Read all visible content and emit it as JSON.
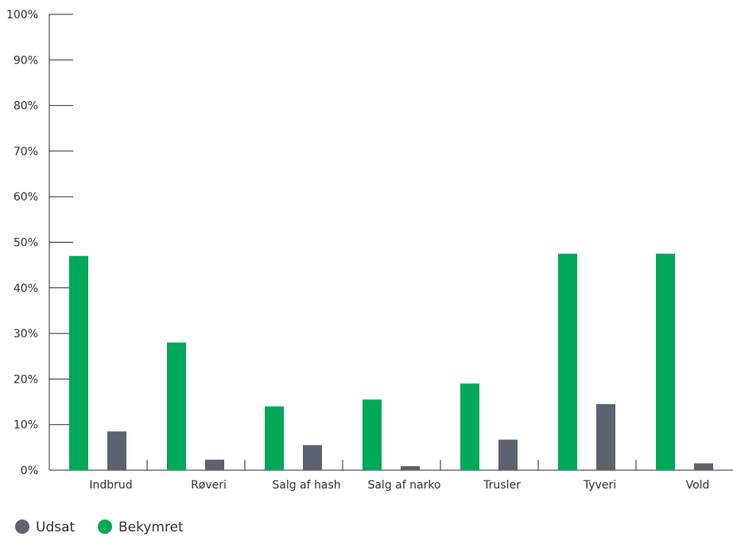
{
  "colors": {
    "axis": "#2b2b2b",
    "text": "#333333",
    "udsat": "#5c636e",
    "bekymret": "#00a85a"
  },
  "chart_data": {
    "type": "bar",
    "title": "",
    "xlabel": "",
    "ylabel": "",
    "ylim": [
      0,
      100
    ],
    "y_ticks": [
      "0%",
      "10%",
      "20%",
      "30%",
      "40%",
      "50%",
      "60%",
      "70%",
      "80%",
      "90%",
      "100%"
    ],
    "categories": [
      "Indbrud",
      "Røveri",
      "Salg af hash",
      "Salg af narko",
      "Trusler",
      "Tyveri",
      "Vold"
    ],
    "series": [
      {
        "name": "Bekymret",
        "color": "#00a85a",
        "values": [
          47,
          28,
          14,
          15.5,
          19,
          47.5,
          47.5
        ]
      },
      {
        "name": "Udsat",
        "color": "#5c636e",
        "values": [
          8.5,
          2.3,
          5.5,
          0.9,
          6.7,
          14.5,
          1.5
        ]
      }
    ],
    "legend": {
      "position": "bottom-left",
      "items": [
        {
          "label": "Udsat",
          "color": "#5c636e"
        },
        {
          "label": "Bekymret",
          "color": "#00a85a"
        }
      ]
    },
    "grid": false
  }
}
